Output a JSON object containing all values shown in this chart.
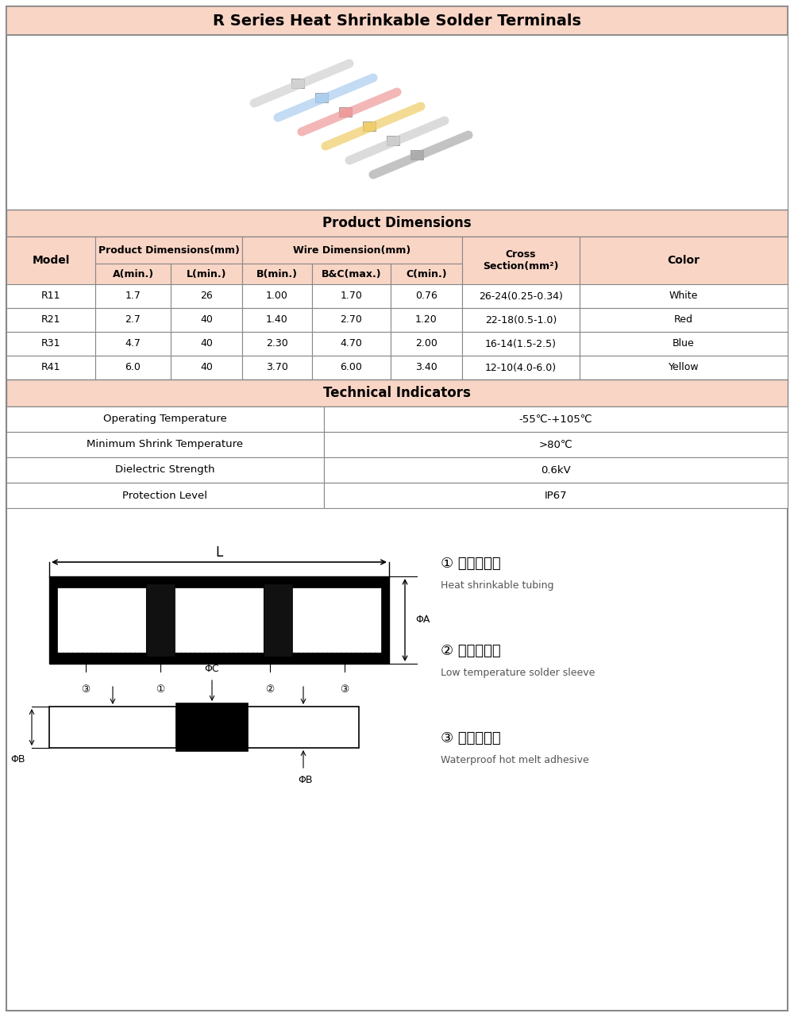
{
  "title": "R Series Heat Shrinkable Solder Terminals",
  "title_bg": "#f9d5c5",
  "table_header_bg": "#f9d5c5",
  "border_color": "#888888",
  "product_dimensions_header": "Product Dimensions",
  "technical_indicators_header": "Technical Indicators",
  "rows": [
    [
      "R11",
      "1.7",
      "26",
      "1.00",
      "1.70",
      "0.76",
      "26-24(0.25-0.34)",
      "White"
    ],
    [
      "R21",
      "2.7",
      "40",
      "1.40",
      "2.70",
      "1.20",
      "22-18(0.5-1.0)",
      "Red"
    ],
    [
      "R31",
      "4.7",
      "40",
      "2.30",
      "4.70",
      "2.00",
      "16-14(1.5-2.5)",
      "Blue"
    ],
    [
      "R41",
      "6.0",
      "40",
      "3.70",
      "6.00",
      "3.40",
      "12-10(4.0-6.0)",
      "Yellow"
    ]
  ],
  "tech_rows": [
    [
      "Operating Temperature",
      "-55℃-+105℃"
    ],
    [
      "Minimum Shrink Temperature",
      ">80℃"
    ],
    [
      "Dielectric Strength",
      "0.6kV"
    ],
    [
      "Protection Level",
      "IP67"
    ]
  ],
  "legend_items": [
    [
      "① 热收缩套管",
      "Heat shrinkable tubing"
    ],
    [
      "② 低温焊锡环",
      "Low temperature solder sleeve"
    ],
    [
      "③ 防水热蚶胶",
      "Waterproof hot melt adhesive"
    ]
  ]
}
